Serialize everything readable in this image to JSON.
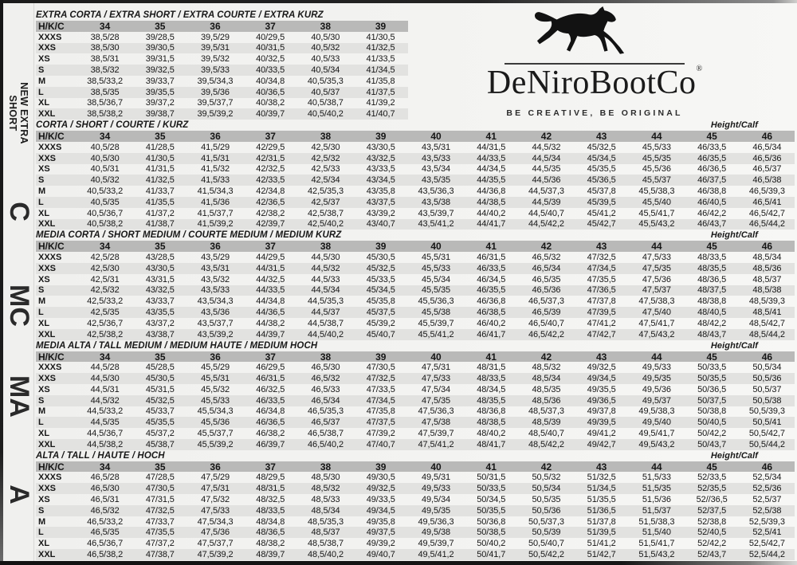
{
  "logo": {
    "brand": "DeNiroBootCo",
    "registered": "®",
    "tagline": "BE CREATIVE, BE ORIGINAL",
    "horse_icon": "galloping-horse"
  },
  "labels": {
    "row_header": "H/K/C",
    "height_calf": "Height/Calf"
  },
  "colors": {
    "header_band": "#b9b9b8",
    "row_stripe": "#e2e2e0",
    "ink": "#151515"
  },
  "sidebar": {
    "items": [
      {
        "label": "NEW EXTRA SHORT",
        "lines": [
          "NEW EXTRA",
          "SHORT"
        ],
        "style": "small"
      },
      {
        "label": "C",
        "style": "big"
      },
      {
        "label": "MC",
        "style": "big"
      },
      {
        "label": "MA",
        "style": "big"
      },
      {
        "label": "A",
        "style": "big"
      }
    ]
  },
  "sections": [
    {
      "title": "EXTRA CORTA / EXTRA SHORT / EXTRA COURTE / EXTRA KURZ",
      "height_calf_visible": false,
      "sizes": [
        "34",
        "35",
        "36",
        "37",
        "38",
        "39"
      ],
      "rows": [
        {
          "label": "XXXS",
          "values": [
            "38,5/28",
            "39/28,5",
            "39,5/29",
            "40/29,5",
            "40,5/30",
            "41/30,5"
          ]
        },
        {
          "label": "XXS",
          "values": [
            "38,5/30",
            "39/30,5",
            "39,5/31",
            "40/31,5",
            "40,5/32",
            "41/32,5"
          ]
        },
        {
          "label": "XS",
          "values": [
            "38,5/31",
            "39/31,5",
            "39,5/32",
            "40/32,5",
            "40,5/33",
            "41/33,5"
          ]
        },
        {
          "label": "S",
          "values": [
            "38,5/32",
            "39/32,5",
            "39,5/33",
            "40/33,5",
            "40,5/34",
            "41/34,5"
          ]
        },
        {
          "label": "M",
          "values": [
            "38,5/33,2",
            "39/33,7",
            "39,5/34,3",
            "40/34,8",
            "40,5/35,3",
            "41/35,8"
          ]
        },
        {
          "label": "L",
          "values": [
            "38,5/35",
            "39/35,5",
            "39,5/36",
            "40/36,5",
            "40,5/37",
            "41/37,5"
          ]
        },
        {
          "label": "XL",
          "values": [
            "38,5/36,7",
            "39/37,2",
            "39,5/37,7",
            "40/38,2",
            "40,5/38,7",
            "41/39,2"
          ]
        },
        {
          "label": "XXL",
          "values": [
            "38,5/38,2",
            "39/38,7",
            "39,5/39,2",
            "40/39,7",
            "40,5/40,2",
            "41/40,7"
          ]
        }
      ]
    },
    {
      "title": "CORTA / SHORT / COURTE / KURZ",
      "height_calf_visible": true,
      "sizes": [
        "34",
        "35",
        "36",
        "37",
        "38",
        "39",
        "40",
        "41",
        "42",
        "43",
        "44",
        "45",
        "46"
      ],
      "rows": [
        {
          "label": "XXXS",
          "values": [
            "40,5/28",
            "41/28,5",
            "41,5/29",
            "42/29,5",
            "42,5/30",
            "43/30,5",
            "43,5/31",
            "44/31,5",
            "44,5/32",
            "45/32,5",
            "45,5/33",
            "46/33,5",
            "46,5/34"
          ]
        },
        {
          "label": "XXS",
          "values": [
            "40,5/30",
            "41/30,5",
            "41,5/31",
            "42/31,5",
            "42,5/32",
            "43/32,5",
            "43,5/33",
            "44/33,5",
            "44,5/34",
            "45/34,5",
            "45,5/35",
            "46/35,5",
            "46,5/36"
          ]
        },
        {
          "label": "XS",
          "values": [
            "40,5/31",
            "41/31,5",
            "41,5/32",
            "42/32,5",
            "42,5/33",
            "43/33,5",
            "43,5/34",
            "44/34,5",
            "44,5/35",
            "45/35,5",
            "45,5/36",
            "46/36,5",
            "46,5/37"
          ]
        },
        {
          "label": "S",
          "values": [
            "40,5/32",
            "41/32,5",
            "41,5/33",
            "42/33,5",
            "42,5/34",
            "43/34,5",
            "43,5/35",
            "44/35,5",
            "44,5/36",
            "45/36,5",
            "45,5/37",
            "46/37,5",
            "46,5/38"
          ]
        },
        {
          "label": "M",
          "values": [
            "40,5/33,2",
            "41/33,7",
            "41,5/34,3",
            "42/34,8",
            "42,5/35,3",
            "43/35,8",
            "43,5/36,3",
            "44/36,8",
            "44,5/37,3",
            "45/37,8",
            "45,5/38,3",
            "46/38,8",
            "46,5/39,3"
          ]
        },
        {
          "label": "L",
          "values": [
            "40,5/35",
            "41/35,5",
            "41,5/36",
            "42/36,5",
            "42,5/37",
            "43/37,5",
            "43,5/38",
            "44/38,5",
            "44,5/39",
            "45/39,5",
            "45,5/40",
            "46/40,5",
            "46,5/41"
          ]
        },
        {
          "label": "XL",
          "values": [
            "40,5/36,7",
            "41/37,2",
            "41,5/37,7",
            "42/38,2",
            "42,5/38,7",
            "43/39,2",
            "43,5/39,7",
            "44/40,2",
            "44,5/40,7",
            "45/41,2",
            "45,5/41,7",
            "46/42,2",
            "46,5/42,7"
          ]
        },
        {
          "label": "XXL",
          "values": [
            "40,5/38,2",
            "41/38,7",
            "41,5/39,2",
            "42/39,7",
            "42,5/40,2",
            "43/40,7",
            "43,5/41,2",
            "44/41,7",
            "44,5/42,2",
            "45/42,7",
            "45,5/43,2",
            "46/43,7",
            "46,5/44,2"
          ]
        }
      ]
    },
    {
      "title": "MEDIA CORTA / SHORT MEDIUM / COURTE MEDIUM / MEDIUM KURZ",
      "height_calf_visible": true,
      "sizes": [
        "34",
        "35",
        "36",
        "37",
        "38",
        "39",
        "40",
        "41",
        "42",
        "43",
        "44",
        "45",
        "46"
      ],
      "rows": [
        {
          "label": "XXXS",
          "values": [
            "42,5/28",
            "43/28,5",
            "43,5/29",
            "44/29,5",
            "44,5/30",
            "45/30,5",
            "45,5/31",
            "46/31,5",
            "46,5/32",
            "47/32,5",
            "47,5/33",
            "48/33,5",
            "48,5/34"
          ]
        },
        {
          "label": "XXS",
          "values": [
            "42,5/30",
            "43/30,5",
            "43,5/31",
            "44/31,5",
            "44,5/32",
            "45/32,5",
            "45,5/33",
            "46/33,5",
            "46,5/34",
            "47/34,5",
            "47,5/35",
            "48/35,5",
            "48,5/36"
          ]
        },
        {
          "label": "XS",
          "values": [
            "42,5/31",
            "43/31,5",
            "43,5/32",
            "44/32,5",
            "44,5/33",
            "45/33,5",
            "45,5/34",
            "46/34,5",
            "46,5/35",
            "47/35,5",
            "47,5/36",
            "48/36,5",
            "48,5/37"
          ]
        },
        {
          "label": "S",
          "values": [
            "42,5/32",
            "43/32,5",
            "43,5/33",
            "44/33,5",
            "44,5/34",
            "45/34,5",
            "45,5/35",
            "46/35,5",
            "46,5/36",
            "47/36,5",
            "47,5/37",
            "48/37,5",
            "48,5/38"
          ]
        },
        {
          "label": "M",
          "values": [
            "42,5/33,2",
            "43/33,7",
            "43,5/34,3",
            "44/34,8",
            "44,5/35,3",
            "45/35,8",
            "45,5/36,3",
            "46/36,8",
            "46,5/37,3",
            "47/37,8",
            "47,5/38,3",
            "48/38,8",
            "48,5/39,3"
          ]
        },
        {
          "label": "L",
          "values": [
            "42,5/35",
            "43/35,5",
            "43,5/36",
            "44/36,5",
            "44,5/37",
            "45/37,5",
            "45,5/38",
            "46/38,5",
            "46,5/39",
            "47/39,5",
            "47,5/40",
            "48/40,5",
            "48,5/41"
          ]
        },
        {
          "label": "XL",
          "values": [
            "42,5/36,7",
            "43/37,2",
            "43,5/37,7",
            "44/38,2",
            "44,5/38,7",
            "45/39,2",
            "45,5/39,7",
            "46/40,2",
            "46,5/40,7",
            "47/41,2",
            "47,5/41,7",
            "48/42,2",
            "48,5/42,7"
          ]
        },
        {
          "label": "XXL",
          "values": [
            "42,5/38,2",
            "43/38,7",
            "43,5/39,2",
            "44/39,7",
            "44,5/40,2",
            "45/40,7",
            "45,5/41,2",
            "46/41,7",
            "46,5/42,2",
            "47/42,7",
            "47,5/43,2",
            "48/43,7",
            "48,5/44,2"
          ]
        }
      ]
    },
    {
      "title": "MEDIA ALTA / TALL MEDIUM / MEDIUM HAUTE / MEDIUM HOCH",
      "height_calf_visible": true,
      "sizes": [
        "34",
        "35",
        "36",
        "37",
        "38",
        "39",
        "40",
        "41",
        "42",
        "43",
        "44",
        "45",
        "46"
      ],
      "rows": [
        {
          "label": "XXXS",
          "values": [
            "44,5/28",
            "45/28,5",
            "45,5/29",
            "46/29,5",
            "46,5/30",
            "47/30,5",
            "47,5/31",
            "48/31,5",
            "48,5/32",
            "49/32,5",
            "49,5/33",
            "50/33,5",
            "50,5/34"
          ]
        },
        {
          "label": "XXS",
          "values": [
            "44,5/30",
            "45/30,5",
            "45,5/31",
            "46/31,5",
            "46,5/32",
            "47/32,5",
            "47,5/33",
            "48/33,5",
            "48,5/34",
            "49/34,5",
            "49,5/35",
            "50/35,5",
            "50,5/36"
          ]
        },
        {
          "label": "XS",
          "values": [
            "44,5/31",
            "45/31,5",
            "45,5/32",
            "46/32,5",
            "46,5/33",
            "47/33,5",
            "47,5/34",
            "48/34,5",
            "48,5/35",
            "49/35,5",
            "49,5/36",
            "50/36,5",
            "50,5/37"
          ]
        },
        {
          "label": "S",
          "values": [
            "44,5/32",
            "45/32,5",
            "45,5/33",
            "46/33,5",
            "46,5/34",
            "47/34,5",
            "47,5/35",
            "48/35,5",
            "48,5/36",
            "49/36,5",
            "49,5/37",
            "50/37,5",
            "50,5/38"
          ]
        },
        {
          "label": "M",
          "values": [
            "44,5/33,2",
            "45/33,7",
            "45,5/34,3",
            "46/34,8",
            "46,5/35,3",
            "47/35,8",
            "47,5/36,3",
            "48/36,8",
            "48,5/37,3",
            "49/37,8",
            "49,5/38,3",
            "50/38,8",
            "50,5/39,3"
          ]
        },
        {
          "label": "L",
          "values": [
            "44,5/35",
            "45/35,5",
            "45,5/36",
            "46/36,5",
            "46,5/37",
            "47/37,5",
            "47,5/38",
            "48/38,5",
            "48,5/39",
            "49/39,5",
            "49,5/40",
            "50/40,5",
            "50,5/41"
          ]
        },
        {
          "label": "XL",
          "values": [
            "44,5/36,7",
            "45/37,2",
            "45,5/37,7",
            "46/38,2",
            "46,5/38,7",
            "47/39,2",
            "47,5/39,7",
            "48/40,2",
            "48,5/40,7",
            "49/41,2",
            "49,5/41,7",
            "50/42,2",
            "50,5/42,7"
          ]
        },
        {
          "label": "XXL",
          "values": [
            "44,5/38,2",
            "45/38,7",
            "45,5/39,2",
            "46/39,7",
            "46,5/40,2",
            "47/40,7",
            "47,5/41,2",
            "48/41,7",
            "48,5/42,2",
            "49/42,7",
            "49,5/43,2",
            "50/43,7",
            "50,5/44,2"
          ]
        }
      ]
    },
    {
      "title": "ALTA / TALL / HAUTE / HOCH",
      "height_calf_visible": true,
      "sizes": [
        "34",
        "35",
        "36",
        "37",
        "38",
        "39",
        "40",
        "41",
        "42",
        "43",
        "44",
        "45",
        "46"
      ],
      "rows": [
        {
          "label": "XXXS",
          "values": [
            "46,5/28",
            "47/28,5",
            "47,5/29",
            "48/29,5",
            "48,5/30",
            "49/30,5",
            "49,5/31",
            "50/31,5",
            "50,5/32",
            "51/32,5",
            "51,5/33",
            "52/33,5",
            "52,5/34"
          ]
        },
        {
          "label": "XXS",
          "values": [
            "46,5/30",
            "47/30,5",
            "47,5/31",
            "48/31,5",
            "48,5/32",
            "49/32,5",
            "49,5/33",
            "50/33,5",
            "50,5/34",
            "51/34,5",
            "51,5/35",
            "52/35,5",
            "52,5/36"
          ]
        },
        {
          "label": "XS",
          "values": [
            "46,5/31",
            "47/31,5",
            "47,5/32",
            "48/32,5",
            "48,5/33",
            "49/33,5",
            "49,5/34",
            "50/34,5",
            "50,5/35",
            "51/35,5",
            "51,5/36",
            "52//36,5",
            "52,5/37"
          ]
        },
        {
          "label": "S",
          "values": [
            "46,5/32",
            "47/32,5",
            "47,5/33",
            "48/33,5",
            "48,5/34",
            "49/34,5",
            "49,5/35",
            "50/35,5",
            "50,5/36",
            "51/36,5",
            "51,5/37",
            "52/37,5",
            "52,5/38"
          ]
        },
        {
          "label": "M",
          "values": [
            "46,5/33,2",
            "47/33,7",
            "47,5/34,3",
            "48/34,8",
            "48,5/35,3",
            "49/35,8",
            "49,5/36,3",
            "50/36,8",
            "50,5/37,3",
            "51/37,8",
            "51,5/38,3",
            "52/38,8",
            "52,5/39,3"
          ]
        },
        {
          "label": "L",
          "values": [
            "46,5/35",
            "47/35,5",
            "47,5/36",
            "48/36,5",
            "48,5/37",
            "49/37,5",
            "49,5/38",
            "50/38,5",
            "50,5/39",
            "51/39,5",
            "51,5/40",
            "52/40,5",
            "52,5/41"
          ]
        },
        {
          "label": "XL",
          "values": [
            "46,5/36,7",
            "47/37,2",
            "47,5/37,7",
            "48/38,2",
            "48,5/38,7",
            "49/39,2",
            "49,5/39,7",
            "50/40,2",
            "50,5/40,7",
            "51/41,2",
            "51,5/41,7",
            "52/42,2",
            "52,5/42,7"
          ]
        },
        {
          "label": "XXL",
          "values": [
            "46,5/38,2",
            "47/38,7",
            "47,5/39,2",
            "48/39,7",
            "48,5/40,2",
            "49/40,7",
            "49,5/41,2",
            "50/41,7",
            "50,5/42,2",
            "51/42,7",
            "51,5/43,2",
            "52/43,7",
            "52,5/44,2"
          ]
        }
      ]
    }
  ]
}
